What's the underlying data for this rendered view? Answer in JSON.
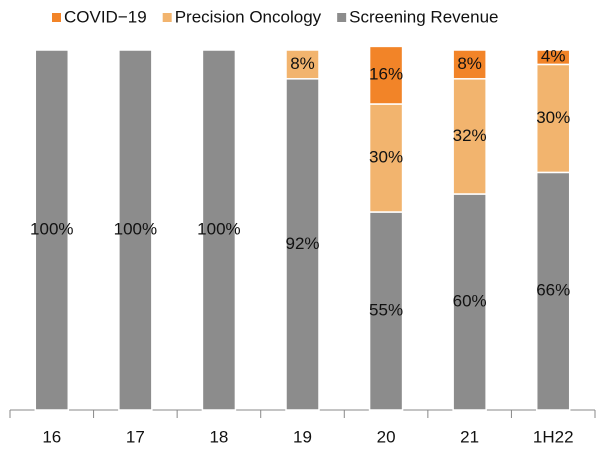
{
  "chart_data": {
    "type": "stacked_bar",
    "categories": [
      "16",
      "17",
      "18",
      "19",
      "20",
      "21",
      "1H22"
    ],
    "series": [
      {
        "name": "Screening Revenue",
        "color": "#8c8c8c",
        "values": [
          100,
          100,
          100,
          92,
          55,
          60,
          66
        ],
        "value_labels": [
          "100%",
          "100%",
          "100%",
          "92%",
          "55%",
          "60%",
          "66%"
        ]
      },
      {
        "name": "Precision Oncology",
        "color": "#f2b46e",
        "values": [
          null,
          null,
          null,
          8,
          30,
          32,
          30
        ],
        "value_labels": [
          null,
          null,
          null,
          "8%",
          "30%",
          "32%",
          "30%"
        ]
      },
      {
        "name": "COVID−19",
        "color": "#f28428",
        "values": [
          null,
          null,
          null,
          null,
          16,
          8,
          4
        ],
        "value_labels": [
          null,
          null,
          null,
          null,
          "16%",
          "8%",
          "4%"
        ]
      }
    ],
    "ylim": [
      0,
      100
    ],
    "legend": "top"
  }
}
